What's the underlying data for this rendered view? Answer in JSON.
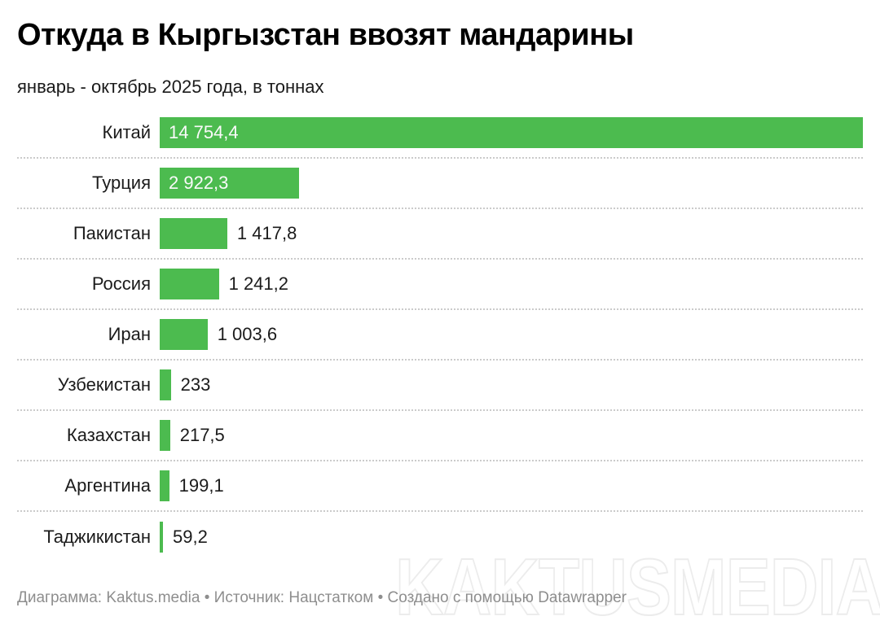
{
  "header": {
    "title": "Откуда в Кыргызстан ввозят мандарины",
    "subtitle": "январь - октябрь 2025 года, в тоннах"
  },
  "chart_data": {
    "type": "bar",
    "orientation": "horizontal",
    "title": "Откуда в Кыргызстан ввозят мандарины",
    "subtitle": "январь - октябрь 2025 года, в тоннах",
    "unit": "тонны",
    "categories": [
      "Китай",
      "Турция",
      "Пакистан",
      "Россия",
      "Иран",
      "Узбекистан",
      "Казахстан",
      "Аргентина",
      "Таджикистан"
    ],
    "values": [
      14754.4,
      2922.3,
      1417.8,
      1241.2,
      1003.6,
      233,
      217.5,
      199.1,
      59.2
    ],
    "value_labels": [
      "14 754,4",
      "2 922,3",
      "1 417,8",
      "1 241,2",
      "1 003,6",
      "233",
      "217,5",
      "199,1",
      "59,2"
    ],
    "xlabel": "",
    "ylabel": "",
    "xlim": [
      0,
      14754.4
    ],
    "grid": false,
    "legend": false,
    "bar_color": "#4CBB4F",
    "separator_style": "dotted"
  },
  "footer": {
    "text": "Диаграмма: Kaktus.media • Источник: Нацстатком • Создано с помощью Datawrapper"
  },
  "watermark": "KAKTUSMEDIA",
  "colors": {
    "background": "#FFFFFF",
    "bar": "#4CBB4F",
    "value_inside_text": "#FAFAFA",
    "value_outside_text": "#1B1B1B",
    "category_text": "#1B1B1B",
    "title_text": "#000000",
    "footer_text": "#8E8E8E",
    "separator": "#CBCBCB",
    "watermark_stroke": "#ECECEC"
  }
}
